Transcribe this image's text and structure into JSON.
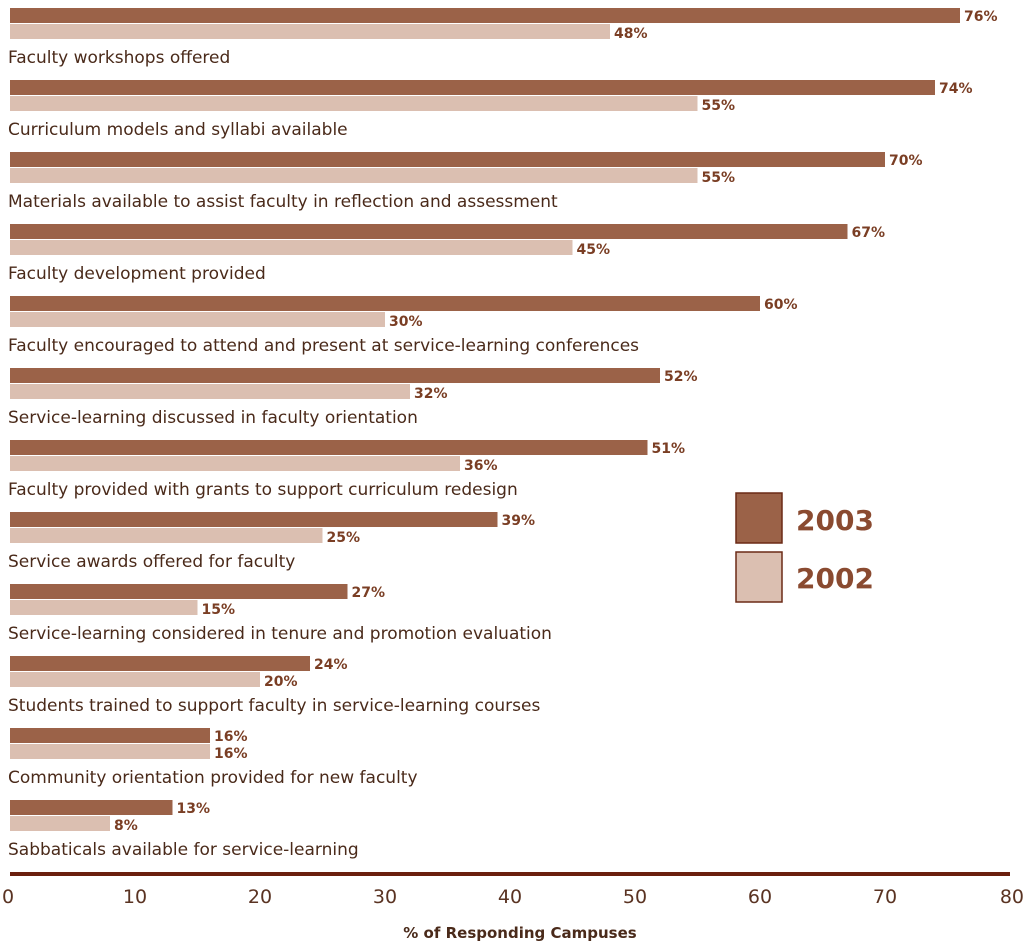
{
  "chart_data": {
    "type": "bar",
    "orientation": "horizontal",
    "categories": [
      "Faculty workshops offered",
      "Curriculum models and syllabi available",
      "Materials available to assist faculty in reflection and assessment",
      "Faculty development provided",
      "Faculty encouraged to attend and present at service-learning conferences",
      "Service-learning discussed in faculty orientation",
      "Faculty provided with grants to support curriculum redesign",
      "Service awards offered for faculty",
      "Service-learning considered in tenure and promotion evaluation",
      "Students trained to support faculty in service-learning courses",
      "Community orientation provided for new faculty",
      "Sabbaticals available for service-learning"
    ],
    "series": [
      {
        "name": "2003",
        "color": "#9b6248",
        "values": [
          76,
          74,
          70,
          67,
          60,
          52,
          51,
          39,
          27,
          24,
          16,
          13
        ],
        "labels": [
          "76%",
          "74%",
          "70%",
          "67%",
          "60%",
          "52%",
          "51%",
          "39%",
          "27%",
          "24%",
          "16%",
          "13%"
        ]
      },
      {
        "name": "2002",
        "color": "#dbbfb1",
        "values": [
          48,
          55,
          55,
          45,
          30,
          32,
          36,
          25,
          15,
          20,
          16,
          8
        ],
        "labels": [
          "48%",
          "55%",
          "55%",
          "45%",
          "30%",
          "32%",
          "36%",
          "25%",
          "15%",
          "20%",
          "16%",
          "8%"
        ]
      }
    ],
    "xlim": [
      0,
      80
    ],
    "x_ticks": [
      "0",
      "10",
      "20",
      "30",
      "40",
      "50",
      "60",
      "70",
      "80"
    ],
    "xlabel": "% of Responding Campuses",
    "legend_position": "right",
    "axis_color": "#6b1f0e"
  }
}
